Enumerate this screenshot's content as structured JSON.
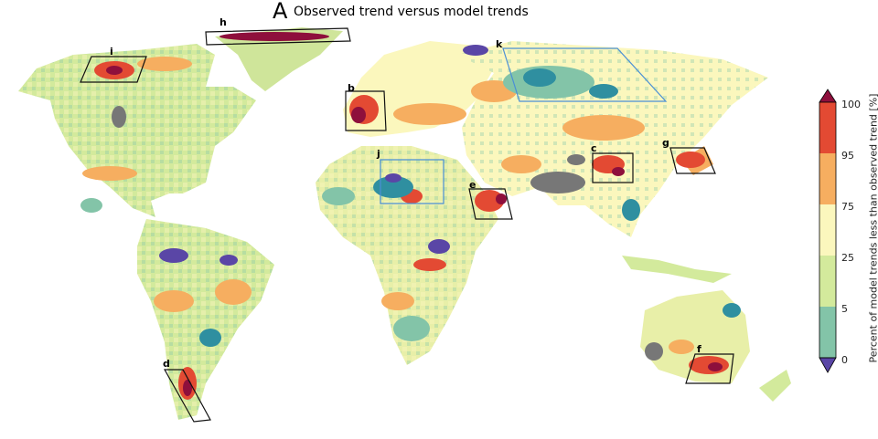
{
  "title": {
    "letter": "A",
    "text": "Observed trend versus model trends"
  },
  "colorbar": {
    "label": "Percent of model trends less than observed trend [%]",
    "ticks": [
      "0",
      "5",
      "25",
      "75",
      "95",
      "100"
    ],
    "colors": [
      "#2f8fa0",
      "#83c4a8",
      "#d3ea9c",
      "#fbf7bd",
      "#f6ae60",
      "#e34a33",
      "#8e0f3c"
    ],
    "under_color": "#5a46a6",
    "over_color": "#8e0f3c"
  },
  "regions": [
    {
      "id": "h",
      "label": "h",
      "color": "#111111"
    },
    {
      "id": "i",
      "label": "i",
      "color": "#111111"
    },
    {
      "id": "b",
      "label": "b",
      "color": "#111111"
    },
    {
      "id": "k",
      "label": "k",
      "color": "#4a8fd6"
    },
    {
      "id": "j",
      "label": "j",
      "color": "#4a8fd6"
    },
    {
      "id": "c",
      "label": "c",
      "color": "#111111"
    },
    {
      "id": "g",
      "label": "g",
      "color": "#111111"
    },
    {
      "id": "e",
      "label": "e",
      "color": "#111111"
    },
    {
      "id": "d",
      "label": "d",
      "color": "#111111"
    },
    {
      "id": "f",
      "label": "f",
      "color": "#111111"
    }
  ],
  "missing_color": "#777777"
}
